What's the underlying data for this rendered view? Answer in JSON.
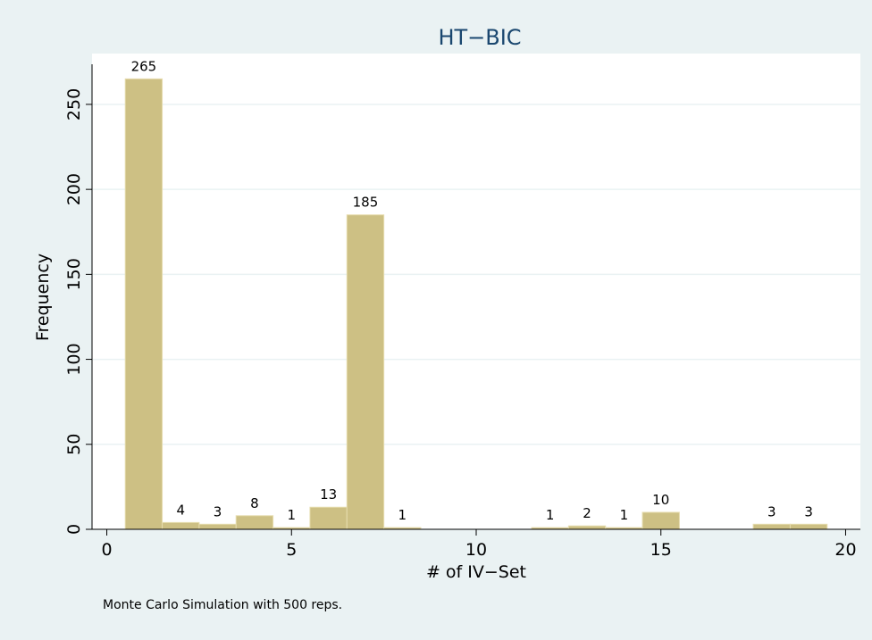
{
  "chart_data": {
    "type": "histogram",
    "title": "HT−BIC",
    "x_label": "# of IV−Set",
    "y_label": "Frequency",
    "note": "Monte Carlo Simulation with 500 reps.",
    "bins": [
      0.5,
      1.5,
      2.5,
      3.5,
      4.5,
      5.5,
      6.5,
      7.5,
      8.5,
      9.5,
      10.5,
      11.5,
      12.5,
      13.5,
      14.5,
      15.5,
      16.5,
      17.5,
      18.5,
      19.5
    ],
    "counts": [
      265,
      4,
      3,
      8,
      1,
      13,
      185,
      1,
      0,
      0,
      0,
      1,
      2,
      1,
      10,
      0,
      0,
      3,
      3
    ],
    "color": "#cdc084",
    "edge_color": "#e6dcae",
    "xlim": [
      -0.4,
      20.4
    ],
    "xticks": [
      0,
      5,
      10,
      15,
      20
    ],
    "ylim": [
      0,
      273.6
    ],
    "yticks": [
      0,
      50,
      100,
      150,
      200,
      250
    ],
    "grid": true
  }
}
